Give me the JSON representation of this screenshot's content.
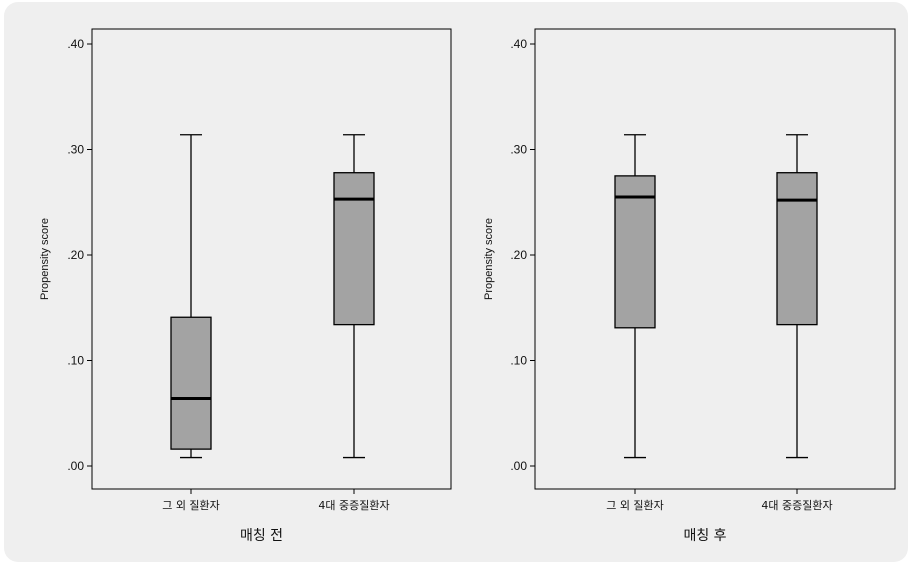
{
  "chart_data": [
    {
      "type": "box",
      "title": "",
      "xlabel": "매칭 전",
      "ylabel": "Propensity score",
      "ylim": [
        0,
        0.4
      ],
      "yticks": [
        ".00",
        ".10",
        ".20",
        ".30",
        ".40"
      ],
      "categories": [
        "그 외 질환자",
        "4대 중증질환자"
      ],
      "boxes": [
        {
          "min": 0.008,
          "q1": 0.016,
          "median": 0.064,
          "q3": 0.141,
          "max": 0.314
        },
        {
          "min": 0.008,
          "q1": 0.134,
          "median": 0.253,
          "q3": 0.278,
          "max": 0.314
        }
      ],
      "grid": false
    },
    {
      "type": "box",
      "title": "",
      "xlabel": "매칭 후",
      "ylabel": "Propensity score",
      "ylim": [
        0,
        0.4
      ],
      "yticks": [
        ".00",
        ".10",
        ".20",
        ".30",
        ".40"
      ],
      "categories": [
        "그 외 질환자",
        "4대 중증질환자"
      ],
      "boxes": [
        {
          "min": 0.008,
          "q1": 0.131,
          "median": 0.255,
          "q3": 0.275,
          "max": 0.314
        },
        {
          "min": 0.008,
          "q1": 0.134,
          "median": 0.252,
          "q3": 0.278,
          "max": 0.314
        }
      ],
      "grid": false
    }
  ],
  "colors": {
    "box_fill": "#a3a3a3",
    "stroke": "#000000",
    "background": "#efefef",
    "plot_bg": "#efefef"
  }
}
